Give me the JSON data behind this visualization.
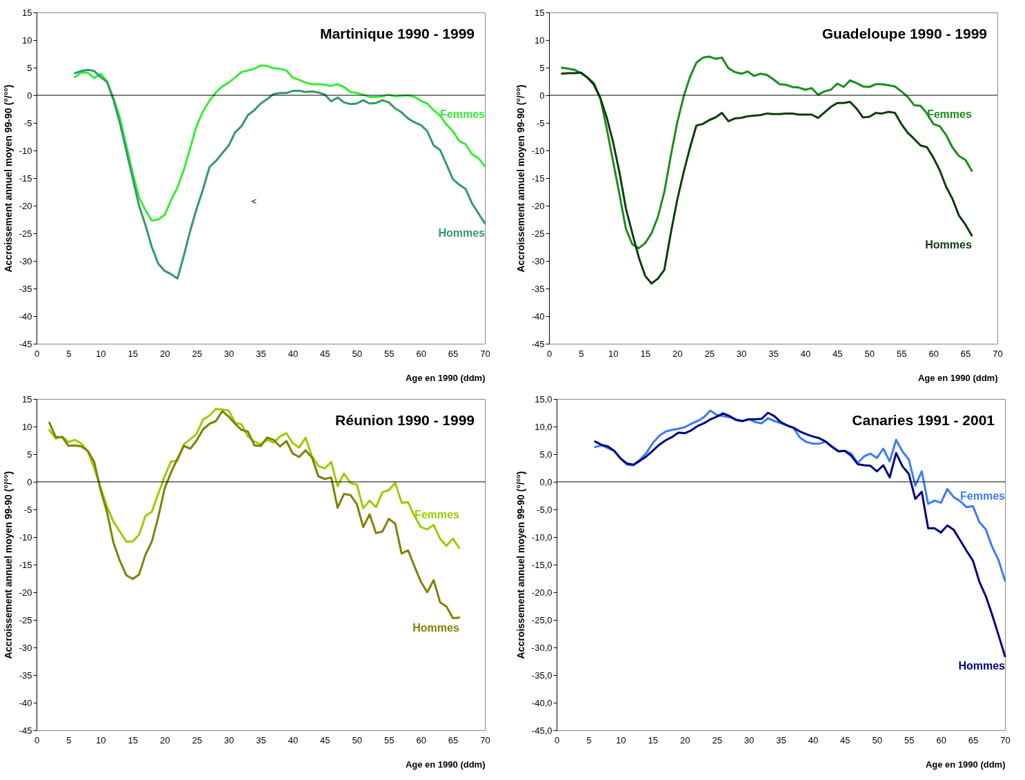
{
  "chart_data": [
    {
      "type": "line",
      "title": "Martinique 1990 - 1999",
      "xlabel": "Age en 1990 (ddm)",
      "ylabel": "Accroissement annuel moyen 99-90 (°/°°)",
      "annotations": [
        "<"
      ],
      "x": [
        6,
        7,
        8,
        9,
        10,
        11,
        12,
        13,
        14,
        15,
        16,
        17,
        18,
        19,
        20,
        21,
        22,
        23,
        24,
        25,
        26,
        27,
        28,
        29,
        30,
        31,
        32,
        33,
        34,
        35,
        36,
        37,
        38,
        39,
        40,
        41,
        42,
        43,
        44,
        45,
        46,
        47,
        48,
        49,
        50,
        51,
        52,
        53,
        54,
        55,
        56,
        57,
        58,
        59,
        60,
        61,
        62,
        63,
        64,
        65,
        66,
        67,
        68,
        69,
        70
      ],
      "series": [
        {
          "name": "Femmes",
          "color": "#33ee33",
          "values": [
            3.3,
            4.1,
            4.1,
            3.1,
            3.9,
            2.5,
            -0.5,
            -4,
            -9,
            -14,
            -18.5,
            -20.8,
            -22.7,
            -22.5,
            -21.7,
            -19,
            -16.7,
            -13.5,
            -9.5,
            -5.5,
            -2.9,
            -1,
            0.5,
            1.6,
            2.3,
            3.2,
            4.2,
            4.5,
            4.8,
            5.4,
            5.3,
            4.9,
            4.8,
            4.5,
            3.2,
            2.8,
            2.3,
            2.0,
            2.0,
            1.9,
            1.7,
            2.0,
            1.5,
            0.6,
            0.4,
            0.1,
            -0.3,
            -0.3,
            -0.2,
            0.1,
            -0.2,
            -0.1,
            0.0,
            -0.3,
            -1.0,
            -1.5,
            -2.7,
            -3.7,
            -5.3,
            -6.5,
            -8.3,
            -8.9,
            -10.7,
            -11.4,
            -12.9
          ]
        },
        {
          "name": "Hommes",
          "color": "#339966",
          "values": [
            4.0,
            4.4,
            4.6,
            4.4,
            3.3,
            2.4,
            -0.8,
            -5,
            -10,
            -15,
            -20,
            -23.5,
            -27.5,
            -30.5,
            -31.8,
            -32.4,
            -33.2,
            -29,
            -24.5,
            -20.5,
            -17,
            -13,
            -11.9,
            -10.5,
            -9.1,
            -6.7,
            -5.6,
            -3.6,
            -2.7,
            -1.5,
            -0.7,
            0.2,
            0.4,
            0.4,
            0.8,
            0.8,
            0.6,
            0.7,
            0.5,
            0.1,
            -1.1,
            -0.4,
            -1.3,
            -1.6,
            -1.5,
            -0.9,
            -1.5,
            -1.4,
            -0.9,
            -1.3,
            -2.4,
            -3.1,
            -4.2,
            -4.9,
            -5.4,
            -6.5,
            -9.1,
            -9.9,
            -12.5,
            -15.2,
            -16.2,
            -17.0,
            -19.6,
            -21.4,
            -23.2
          ]
        }
      ],
      "xlim": [
        0,
        70
      ],
      "ylim": [
        -45,
        15
      ],
      "xticks": [
        0,
        5,
        10,
        15,
        20,
        25,
        30,
        35,
        40,
        45,
        50,
        55,
        60,
        65,
        70
      ],
      "yticks": [
        -45,
        -40,
        -35,
        -30,
        -25,
        -20,
        -15,
        -10,
        -5,
        0,
        5,
        10,
        15
      ],
      "ref_lines": [
        {
          "axis": "y",
          "value": 0,
          "color": "#000000"
        }
      ]
    },
    {
      "type": "line",
      "title": "Guadeloupe 1990 - 1999",
      "xlabel": "Age en 1990 (ddm)",
      "ylabel": "Accroissement annuel moyen 99-90 (°/°°)",
      "x": [
        2,
        3,
        4,
        5,
        6,
        7,
        8,
        9,
        10,
        11,
        12,
        13,
        14,
        15,
        16,
        17,
        18,
        19,
        20,
        21,
        22,
        23,
        24,
        25,
        26,
        27,
        28,
        29,
        30,
        31,
        32,
        33,
        34,
        35,
        36,
        37,
        38,
        39,
        40,
        41,
        42,
        43,
        44,
        45,
        46,
        47,
        48,
        49,
        50,
        51,
        52,
        53,
        54,
        55,
        56,
        57,
        58,
        59,
        60,
        61,
        62,
        63,
        64,
        65,
        66
      ],
      "series": [
        {
          "name": "Femmes",
          "color": "#1a8c1a",
          "values": [
            5.0,
            4.8,
            4.6,
            4.0,
            3.2,
            2.2,
            -0.5,
            -6,
            -12,
            -18,
            -24.2,
            -27.0,
            -27.7,
            -26.8,
            -25,
            -22,
            -17.5,
            -11,
            -5,
            -0.3,
            3.3,
            5.9,
            6.8,
            7.0,
            6.6,
            6.8,
            4.9,
            4.2,
            3.9,
            4.3,
            3.5,
            3.9,
            3.7,
            2.9,
            2.0,
            1.9,
            1.5,
            1.4,
            1.0,
            1.3,
            0.1,
            0.7,
            1.0,
            2.1,
            1.5,
            2.7,
            2.2,
            1.6,
            1.5,
            2.0,
            2.0,
            1.8,
            1.6,
            0.7,
            -0.3,
            -1.8,
            -1.9,
            -3.3,
            -5.2,
            -5.6,
            -7.2,
            -9.5,
            -11.0,
            -11.7,
            -13.7
          ]
        },
        {
          "name": "Hommes",
          "color": "#0b3d0b",
          "values": [
            3.9,
            4.0,
            4.0,
            4.1,
            3.2,
            1.9,
            -0.5,
            -4,
            -8.5,
            -14,
            -20.5,
            -25,
            -29.3,
            -32.7,
            -34.1,
            -33.2,
            -31.6,
            -25,
            -19,
            -14,
            -9.5,
            -5.5,
            -5.2,
            -4.5,
            -4.0,
            -3.2,
            -4.7,
            -4.2,
            -4.1,
            -3.8,
            -3.7,
            -3.6,
            -3.3,
            -3.4,
            -3.4,
            -3.3,
            -3.3,
            -3.5,
            -3.5,
            -3.5,
            -4.1,
            -3.1,
            -2.1,
            -1.4,
            -1.4,
            -1.2,
            -2.4,
            -4.0,
            -3.9,
            -3.2,
            -3.3,
            -3.0,
            -3.2,
            -5.2,
            -6.8,
            -7.9,
            -9.1,
            -9.4,
            -11.3,
            -13.6,
            -16.6,
            -18.8,
            -21.8,
            -23.4,
            -25.4
          ]
        }
      ],
      "xlim": [
        0,
        70
      ],
      "ylim": [
        -45,
        15
      ],
      "xticks": [
        0,
        5,
        10,
        15,
        20,
        25,
        30,
        35,
        40,
        45,
        50,
        55,
        60,
        65,
        70
      ],
      "yticks": [
        -45,
        -40,
        -35,
        -30,
        -25,
        -20,
        -15,
        -10,
        -5,
        0,
        5,
        10,
        15
      ],
      "ref_lines": [
        {
          "axis": "y",
          "value": 0,
          "color": "#000000"
        }
      ]
    },
    {
      "type": "line",
      "title": "Réunion 1990 - 1999",
      "xlabel": "Age en 1990 (ddm)",
      "ylabel": "Accroissement annuel moyen 99-90 (°/°°)",
      "x": [
        2,
        3,
        4,
        5,
        6,
        7,
        8,
        9,
        10,
        11,
        12,
        13,
        14,
        15,
        16,
        17,
        18,
        19,
        20,
        21,
        22,
        23,
        24,
        25,
        26,
        27,
        28,
        29,
        30,
        31,
        32,
        33,
        34,
        35,
        36,
        37,
        38,
        39,
        40,
        41,
        42,
        43,
        44,
        45,
        46,
        47,
        48,
        49,
        50,
        51,
        52,
        53,
        54,
        55,
        56,
        57,
        58,
        59,
        60,
        61,
        62,
        63,
        64,
        65,
        66
      ],
      "series": [
        {
          "name": "Femmes",
          "color": "#99cc00",
          "values": [
            9.4,
            7.8,
            8.2,
            7.2,
            7.6,
            6.9,
            5.5,
            2.5,
            -1,
            -4.5,
            -7.2,
            -9,
            -10.8,
            -10.8,
            -9.6,
            -6.2,
            -5.4,
            -2.2,
            1.0,
            3.7,
            3.8,
            6.8,
            7.7,
            8.7,
            11.3,
            12.0,
            13.2,
            13.1,
            12.9,
            10.7,
            10.4,
            8.2,
            7.3,
            6.8,
            7.6,
            7.1,
            8.2,
            8.8,
            7.0,
            6.2,
            8.0,
            4.6,
            2.9,
            2.4,
            3.6,
            -0.8,
            1.5,
            -0.2,
            -0.5,
            -4.8,
            -3.4,
            -4.6,
            -1.9,
            -1.5,
            -0.2,
            -3.8,
            -3.7,
            -6.2,
            -8.2,
            -8.6,
            -7.8,
            -10.3,
            -11.6,
            -10.3,
            -12.0
          ]
        },
        {
          "name": "Hommes",
          "color": "#808000",
          "values": [
            10.7,
            8.1,
            8.1,
            6.5,
            6.6,
            6.4,
            5.6,
            3.6,
            -1.5,
            -5.5,
            -11,
            -14.3,
            -16.9,
            -17.6,
            -16.8,
            -13.2,
            -10.8,
            -6.4,
            -1.2,
            1.7,
            4.2,
            6.5,
            6.0,
            7.5,
            9.5,
            10.5,
            11.0,
            12.8,
            11.8,
            10.5,
            9.4,
            9.1,
            6.6,
            6.5,
            8.0,
            7.6,
            6.4,
            7.4,
            5.1,
            4.5,
            5.7,
            4.4,
            1.0,
            0.5,
            0.8,
            -4.7,
            -2.2,
            -2.4,
            -4.0,
            -8.2,
            -5.9,
            -9.3,
            -9.0,
            -6.7,
            -7.6,
            -13.0,
            -12.4,
            -15.3,
            -18.1,
            -20.0,
            -17.8,
            -21.8,
            -22.6,
            -24.7,
            -24.6
          ]
        }
      ],
      "xlim": [
        0,
        70
      ],
      "ylim": [
        -45,
        15
      ],
      "xticks": [
        0,
        5,
        10,
        15,
        20,
        25,
        30,
        35,
        40,
        45,
        50,
        55,
        60,
        65,
        70
      ],
      "yticks": [
        -45,
        -40,
        -35,
        -30,
        -25,
        -20,
        -15,
        -10,
        -5,
        0,
        5,
        10,
        15
      ],
      "ref_lines": [
        {
          "axis": "y",
          "value": 0,
          "color": "#000000"
        }
      ]
    },
    {
      "type": "line",
      "title": "Canaries 1991 - 2001",
      "xlabel": "Age en 1990 (ddm)",
      "ylabel": "Accroissement annuel moyen 99-90 (°/°°)",
      "x": [
        6,
        7,
        8,
        9,
        10,
        11,
        12,
        13,
        14,
        15,
        16,
        17,
        18,
        19,
        20,
        21,
        22,
        23,
        24,
        25,
        26,
        27,
        28,
        29,
        30,
        31,
        32,
        33,
        34,
        35,
        36,
        37,
        38,
        39,
        40,
        41,
        42,
        43,
        44,
        45,
        46,
        47,
        48,
        49,
        50,
        51,
        52,
        53,
        54,
        55,
        56,
        57,
        58,
        59,
        60,
        61,
        62,
        63,
        64,
        65,
        66,
        67,
        68,
        69,
        70
      ],
      "series": [
        {
          "name": "Femmes",
          "color": "#3a7aff",
          "values": [
            6.3,
            6.6,
            6.1,
            5.6,
            4.2,
            3.1,
            3.0,
            4.0,
            5.2,
            7.0,
            8.3,
            9.1,
            9.4,
            9.6,
            9.9,
            10.5,
            11.0,
            11.7,
            12.9,
            12.1,
            11.9,
            11.7,
            11.3,
            11.0,
            11.4,
            10.8,
            10.6,
            11.5,
            11.0,
            10.6,
            10.2,
            9.7,
            8.0,
            7.2,
            6.9,
            6.9,
            7.3,
            6.4,
            5.6,
            5.6,
            5.1,
            3.4,
            4.6,
            5.1,
            4.3,
            6.0,
            3.7,
            7.6,
            5.5,
            4.0,
            -0.7,
            1.9,
            -4.0,
            -3.4,
            -3.8,
            -1.3,
            -2.8,
            -3.5,
            -4.6,
            -4.4,
            -7.3,
            -8.6,
            -11.8,
            -14.2,
            -17.9
          ]
        },
        {
          "name": "Hommes",
          "color": "#000080",
          "values": [
            7.3,
            6.7,
            6.4,
            5.6,
            4.2,
            3.3,
            3.1,
            3.8,
            4.6,
            5.6,
            6.7,
            7.5,
            8.1,
            8.9,
            8.8,
            9.3,
            10.1,
            10.6,
            11.3,
            11.8,
            12.4,
            11.9,
            11.2,
            11.0,
            11.3,
            11.3,
            11.4,
            12.5,
            11.9,
            10.8,
            10.2,
            9.8,
            9.1,
            8.6,
            8.2,
            7.9,
            7.3,
            6.3,
            5.5,
            5.6,
            4.7,
            3.2,
            3.0,
            2.9,
            1.9,
            3.0,
            0.8,
            5.2,
            2.8,
            1.4,
            -3.1,
            -1.8,
            -8.4,
            -8.4,
            -9.2,
            -7.9,
            -8.7,
            -10.6,
            -12.5,
            -14.3,
            -18.1,
            -20.7,
            -24.1,
            -27.8,
            -31.6
          ]
        }
      ],
      "xlim": [
        0,
        70
      ],
      "ylim": [
        -45,
        15
      ],
      "xticks": [
        0,
        5,
        10,
        15,
        20,
        25,
        30,
        35,
        40,
        45,
        50,
        55,
        60,
        65,
        70
      ],
      "yticks": [
        {
          "value": -45,
          "label": "-45,0"
        },
        {
          "value": -40,
          "label": "-40,0"
        },
        {
          "value": -35,
          "label": "-35,0"
        },
        {
          "value": -30,
          "label": "-30,0"
        },
        {
          "value": -25,
          "label": "-25,0"
        },
        {
          "value": -20,
          "label": "-20,0"
        },
        {
          "value": -15,
          "label": "-15,0"
        },
        {
          "value": -10,
          "label": "-10,0"
        },
        {
          "value": -5,
          "label": "-5,0"
        },
        {
          "value": 0,
          "label": "0,0"
        },
        {
          "value": 5,
          "label": "5,0"
        },
        {
          "value": 10,
          "label": "10,0"
        },
        {
          "value": 15,
          "label": "15,0"
        }
      ],
      "ref_lines": [
        {
          "axis": "y",
          "value": 0,
          "color": "#000000"
        }
      ]
    }
  ]
}
